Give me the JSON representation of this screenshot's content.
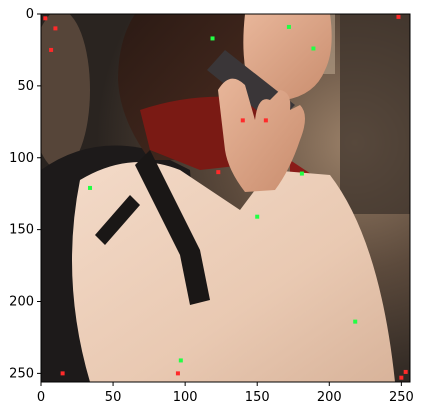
{
  "figure": {
    "image_description_icon": "photo-of-woman-on-phone",
    "x_range": [
      0,
      256
    ],
    "y_range": [
      0,
      256
    ],
    "x_ticks": [
      {
        "value": 0,
        "label": "0"
      },
      {
        "value": 50,
        "label": "50"
      },
      {
        "value": 100,
        "label": "100"
      },
      {
        "value": 150,
        "label": "150"
      },
      {
        "value": 200,
        "label": "200"
      },
      {
        "value": 250,
        "label": "250"
      }
    ],
    "y_ticks": [
      {
        "value": 0,
        "label": "0"
      },
      {
        "value": 50,
        "label": "50"
      },
      {
        "value": 100,
        "label": "100"
      },
      {
        "value": 150,
        "label": "150"
      },
      {
        "value": 200,
        "label": "200"
      },
      {
        "value": 250,
        "label": "250"
      }
    ],
    "colors": {
      "red_marker": "#ff2a2a",
      "green_marker": "#22ff44",
      "background_dark": "#2a2420",
      "background_warm": "#8a6a4a"
    },
    "markers": [
      {
        "x": 3,
        "y": 3,
        "color": "red"
      },
      {
        "x": 10,
        "y": 10,
        "color": "red"
      },
      {
        "x": 7,
        "y": 25,
        "color": "red"
      },
      {
        "x": 119,
        "y": 17,
        "color": "green"
      },
      {
        "x": 172,
        "y": 9,
        "color": "green"
      },
      {
        "x": 189,
        "y": 24,
        "color": "green"
      },
      {
        "x": 248,
        "y": 2,
        "color": "red"
      },
      {
        "x": 140,
        "y": 74,
        "color": "red"
      },
      {
        "x": 156,
        "y": 74,
        "color": "red"
      },
      {
        "x": 123,
        "y": 110,
        "color": "red"
      },
      {
        "x": 181,
        "y": 111,
        "color": "green"
      },
      {
        "x": 34,
        "y": 121,
        "color": "green"
      },
      {
        "x": 150,
        "y": 141,
        "color": "green"
      },
      {
        "x": 218,
        "y": 214,
        "color": "green"
      },
      {
        "x": 97,
        "y": 241,
        "color": "green"
      },
      {
        "x": 15,
        "y": 250,
        "color": "red"
      },
      {
        "x": 95,
        "y": 250,
        "color": "red"
      },
      {
        "x": 250,
        "y": 253,
        "color": "red"
      },
      {
        "x": 253,
        "y": 249,
        "color": "red"
      }
    ]
  }
}
